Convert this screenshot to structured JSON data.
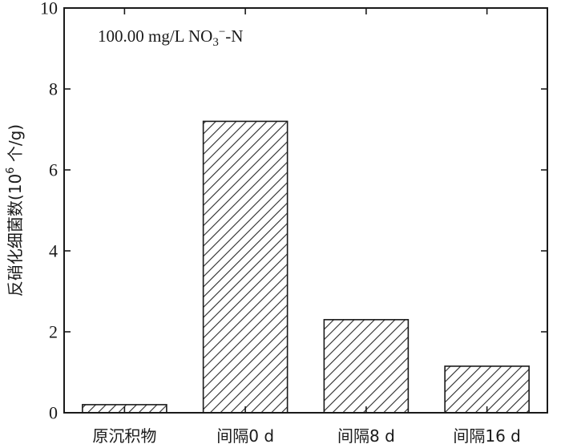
{
  "chart_data": {
    "type": "bar",
    "categories": [
      "原沉积物",
      "间隔0 d",
      "间隔8 d",
      "间隔16 d"
    ],
    "values": [
      0.2,
      7.2,
      2.3,
      1.15
    ],
    "title": "",
    "xlabel": "",
    "ylabel": {
      "text": "反硝化细菌数(10",
      "sup": "6",
      "suffix": " 个/g)"
    },
    "ylim": [
      0,
      10
    ],
    "yticks": [
      "0",
      "2",
      "4",
      "6",
      "8",
      "10"
    ],
    "grid": false,
    "bar_fill": "diagonal-hatch",
    "bar_color": "#2a2a2a",
    "annotation": {
      "main": "100.00 mg/L NO",
      "sub": "3",
      "sup": "−",
      "suffix": "-N"
    }
  }
}
